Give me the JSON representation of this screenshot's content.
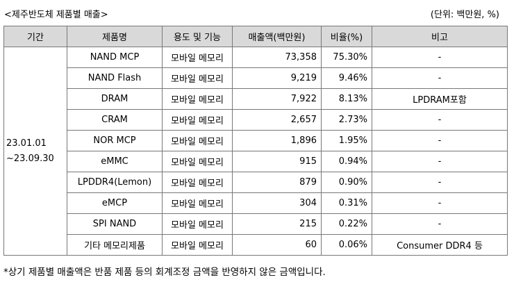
{
  "header": {
    "title": "<제주반도체 제품별 매출>",
    "unit": "(단위: 백만원, %)"
  },
  "table": {
    "columns": [
      "기간",
      "제품명",
      "용도 및 기능",
      "매출액(백만원)",
      "비율(%)",
      "비고"
    ],
    "period_line1": "23.01.01",
    "period_line2": "~23.09.30",
    "rows": [
      {
        "product": "NAND MCP",
        "usage": "모바일 메모리",
        "sales": "73,358",
        "ratio": "75.30%",
        "note": "-"
      },
      {
        "product": "NAND Flash",
        "usage": "모바일 메모리",
        "sales": "9,219",
        "ratio": "9.46%",
        "note": "-"
      },
      {
        "product": "DRAM",
        "usage": "모바일 메모리",
        "sales": "7,922",
        "ratio": "8.13%",
        "note": "LPDRAM포함"
      },
      {
        "product": "CRAM",
        "usage": "모바일 메모리",
        "sales": "2,657",
        "ratio": "2.73%",
        "note": "-"
      },
      {
        "product": "NOR MCP",
        "usage": "모바일 메모리",
        "sales": "1,896",
        "ratio": "1.95%",
        "note": "-"
      },
      {
        "product": "eMMC",
        "usage": "모바일 메모리",
        "sales": "915",
        "ratio": "0.94%",
        "note": "-"
      },
      {
        "product": "LPDDR4(Lemon)",
        "usage": "모바일 메모리",
        "sales": "879",
        "ratio": "0.90%",
        "note": "-"
      },
      {
        "product": "eMCP",
        "usage": "모바일 메모리",
        "sales": "304",
        "ratio": "0.31%",
        "note": "-"
      },
      {
        "product": "SPI NAND",
        "usage": "모바일 메모리",
        "sales": "215",
        "ratio": "0.22%",
        "note": "-"
      },
      {
        "product": "기타 메모리제품",
        "usage": "모바일 메모리",
        "sales": "60",
        "ratio": "0.06%",
        "note": "Consumer DDR4 등"
      }
    ]
  },
  "footnote": "*상기 제품별 매출액은 반품 제품 등의 회계조정 금액을 반영하지 않은 금액입니다."
}
